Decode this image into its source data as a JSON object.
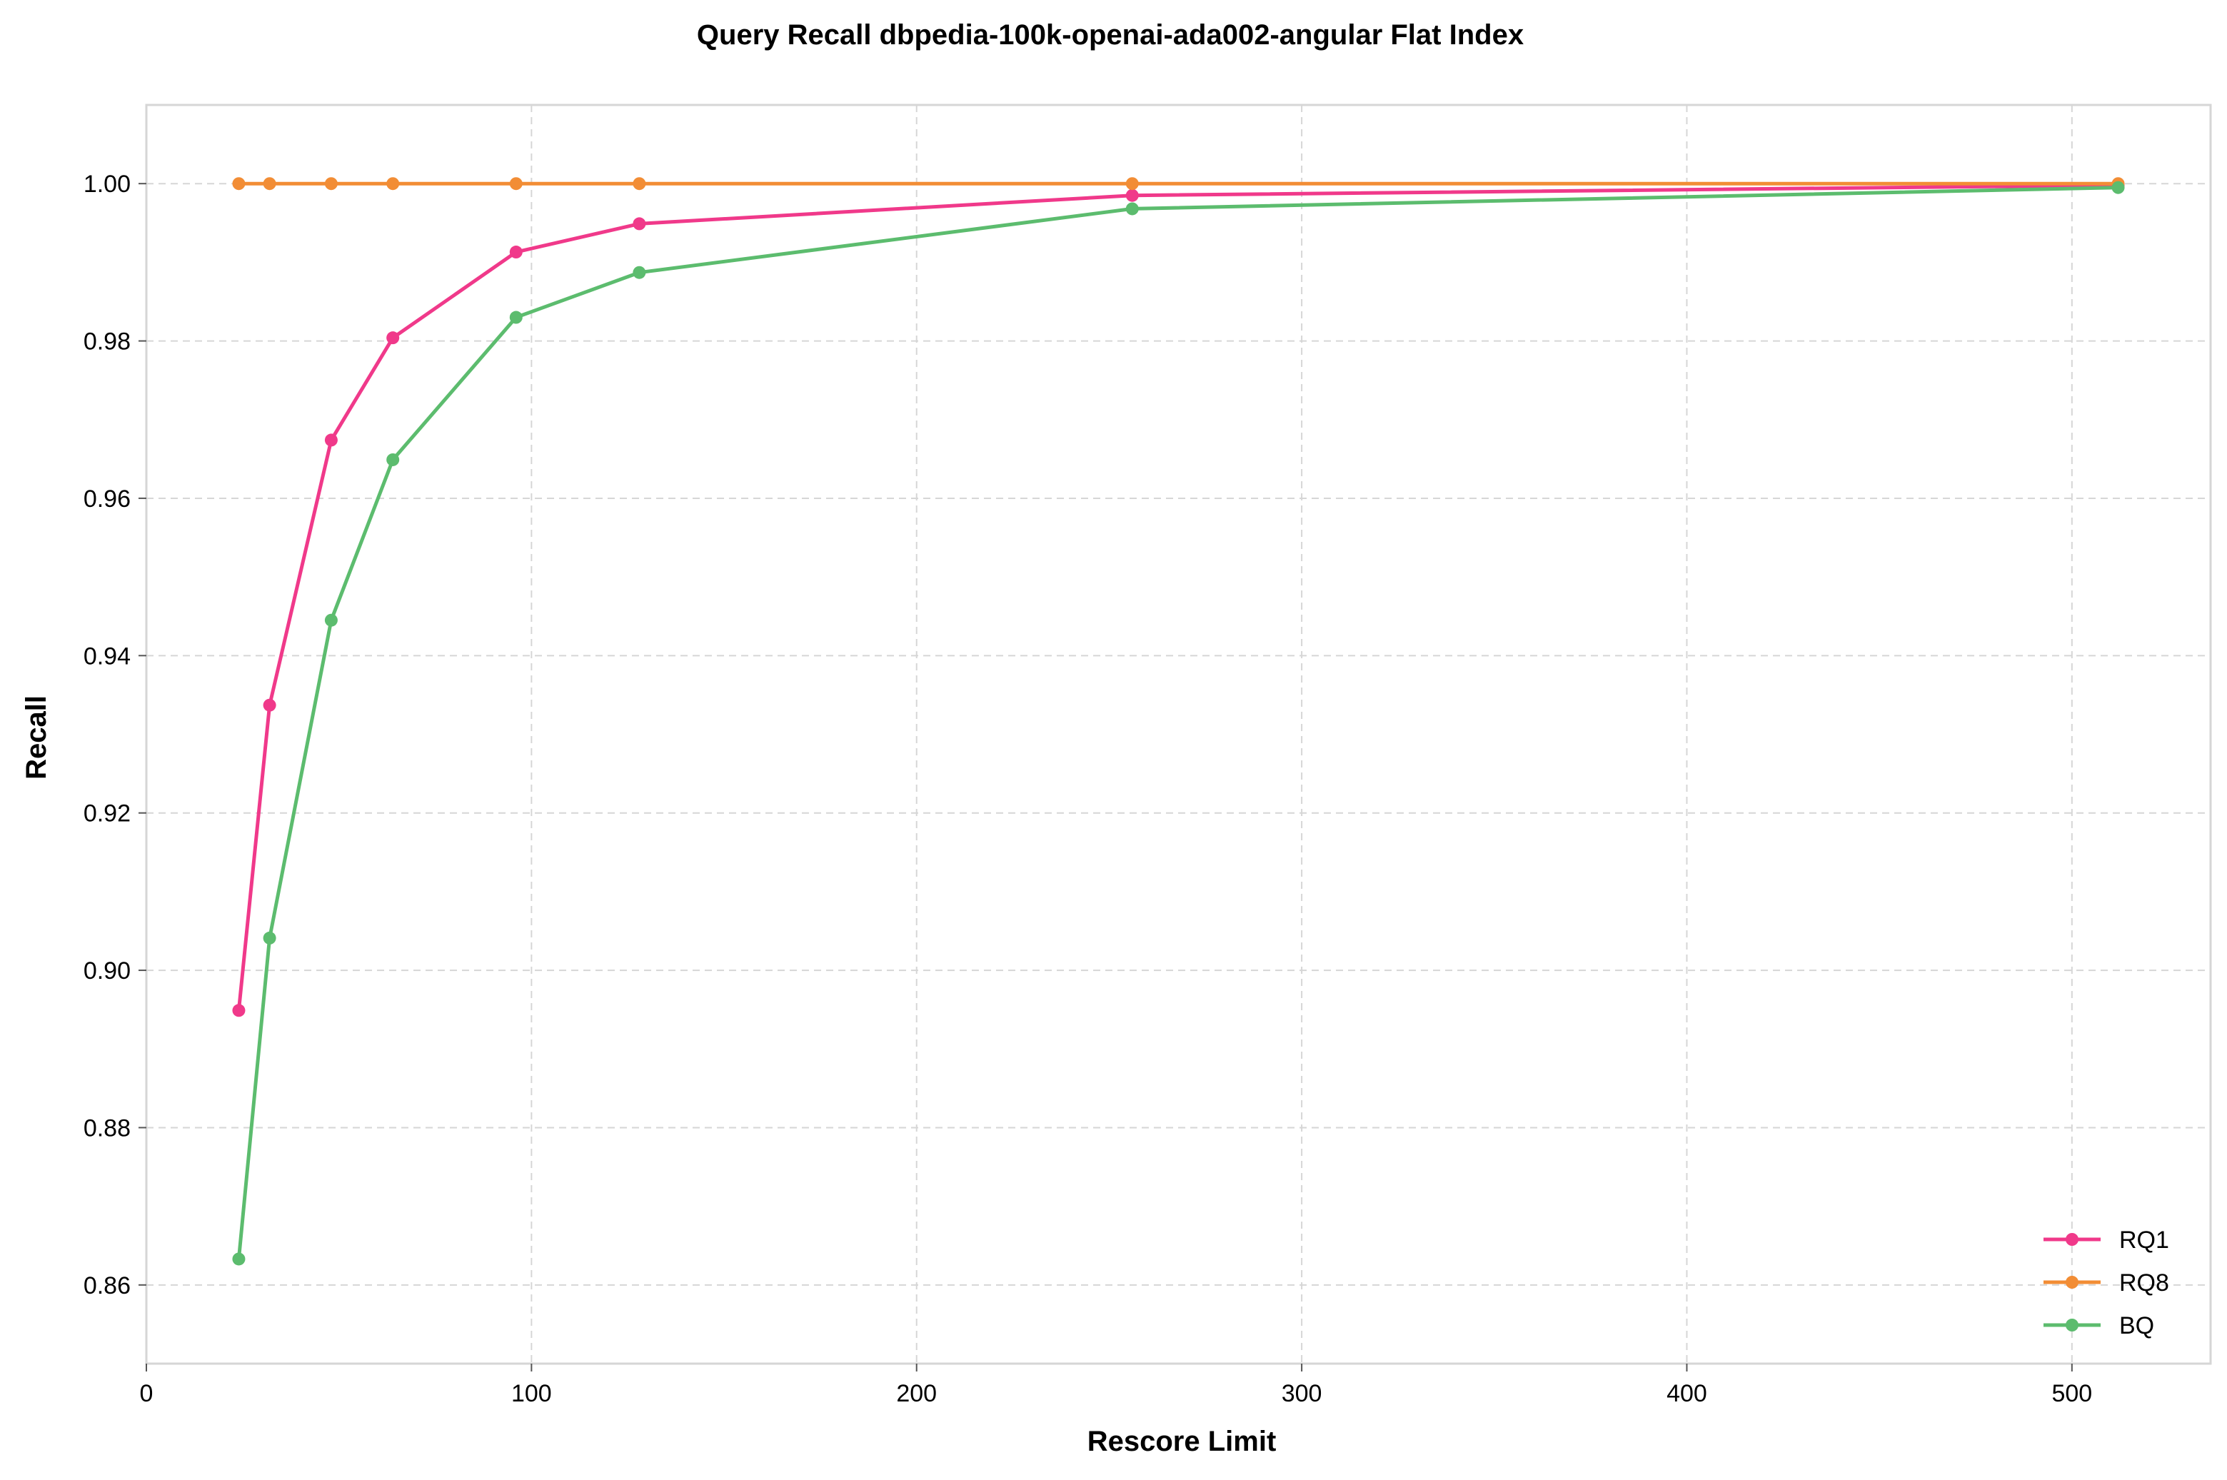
{
  "chart_data": {
    "type": "line",
    "title": "Query Recall dbpedia-100k-openai-ada002-angular Flat Index",
    "xlabel": "Rescore Limit",
    "ylabel": "Recall",
    "xlim": [
      0,
      536
    ],
    "ylim": [
      0.85,
      1.01
    ],
    "x_ticks": [
      0,
      100,
      200,
      300,
      400,
      500
    ],
    "y_ticks": [
      0.86,
      0.88,
      0.9,
      0.92,
      0.94,
      0.96,
      0.98,
      1.0
    ],
    "x_tick_labels": [
      "0",
      "100",
      "200",
      "300",
      "400",
      "500"
    ],
    "y_tick_labels": [
      "0.86",
      "0.88",
      "0.90",
      "0.92",
      "0.94",
      "0.96",
      "0.98",
      "1.00"
    ],
    "grid": true,
    "legend_position": "bottom-right",
    "x": [
      24,
      32,
      48,
      64,
      96,
      128,
      256,
      512
    ],
    "series": [
      {
        "name": "RQ1",
        "color": "#f0398a",
        "values": [
          0.8949,
          0.9337,
          0.9674,
          0.9804,
          0.9913,
          0.9949,
          0.9985,
          0.9998
        ]
      },
      {
        "name": "RQ8",
        "color": "#f28d35",
        "values": [
          1.0,
          1.0,
          1.0,
          1.0,
          1.0,
          1.0,
          1.0,
          1.0
        ]
      },
      {
        "name": "BQ",
        "color": "#5cbc6e",
        "values": [
          0.8633,
          0.9041,
          0.9445,
          0.9649,
          0.983,
          0.9887,
          0.9968,
          0.9995
        ]
      }
    ]
  }
}
